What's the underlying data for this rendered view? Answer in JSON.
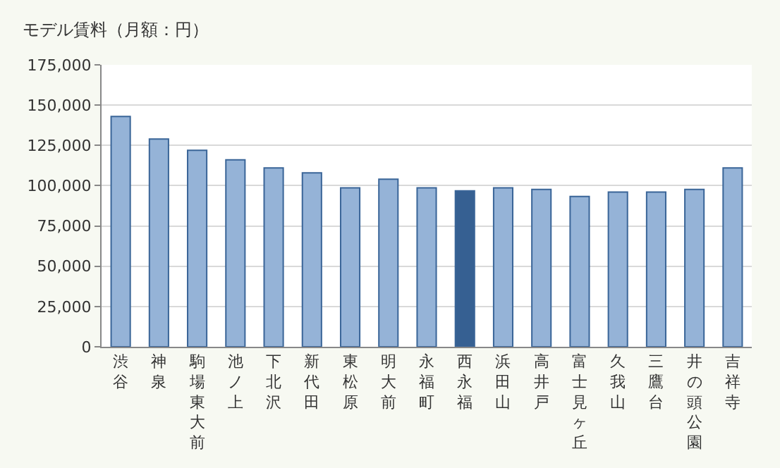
{
  "chart_data": {
    "type": "bar",
    "title": "モデル賃料（月額：円）",
    "categories": [
      "渋谷",
      "神泉",
      "駒場東大前",
      "池ノ上",
      "下北沢",
      "新代田",
      "東松原",
      "明大前",
      "永福町",
      "西永福",
      "浜田山",
      "高井戸",
      "富士見ヶ丘",
      "久我山",
      "三鷹台",
      "井の頭公園",
      "吉祥寺"
    ],
    "values": [
      143000,
      129000,
      122000,
      116000,
      111000,
      108000,
      98600,
      104000,
      98600,
      96800,
      98600,
      97700,
      93300,
      96000,
      96000,
      97700,
      111000
    ],
    "colors": [
      "#95b3d7",
      "#95b3d7",
      "#95b3d7",
      "#95b3d7",
      "#95b3d7",
      "#95b3d7",
      "#95b3d7",
      "#95b3d7",
      "#95b3d7",
      "#366092",
      "#95b3d7",
      "#95b3d7",
      "#95b3d7",
      "#95b3d7",
      "#95b3d7",
      "#95b3d7",
      "#95b3d7"
    ],
    "ylim": [
      0,
      175000
    ],
    "yticks": [
      {
        "value": 0,
        "label": "0"
      },
      {
        "value": 25000,
        "label": "25,000"
      },
      {
        "value": 50000,
        "label": "50,000"
      },
      {
        "value": 75000,
        "label": "75,000"
      },
      {
        "value": 100000,
        "label": "100,000"
      },
      {
        "value": 125000,
        "label": "125,000"
      },
      {
        "value": 150000,
        "label": "150,000"
      },
      {
        "value": 175000,
        "label": "175,000"
      }
    ],
    "grid": "y"
  }
}
